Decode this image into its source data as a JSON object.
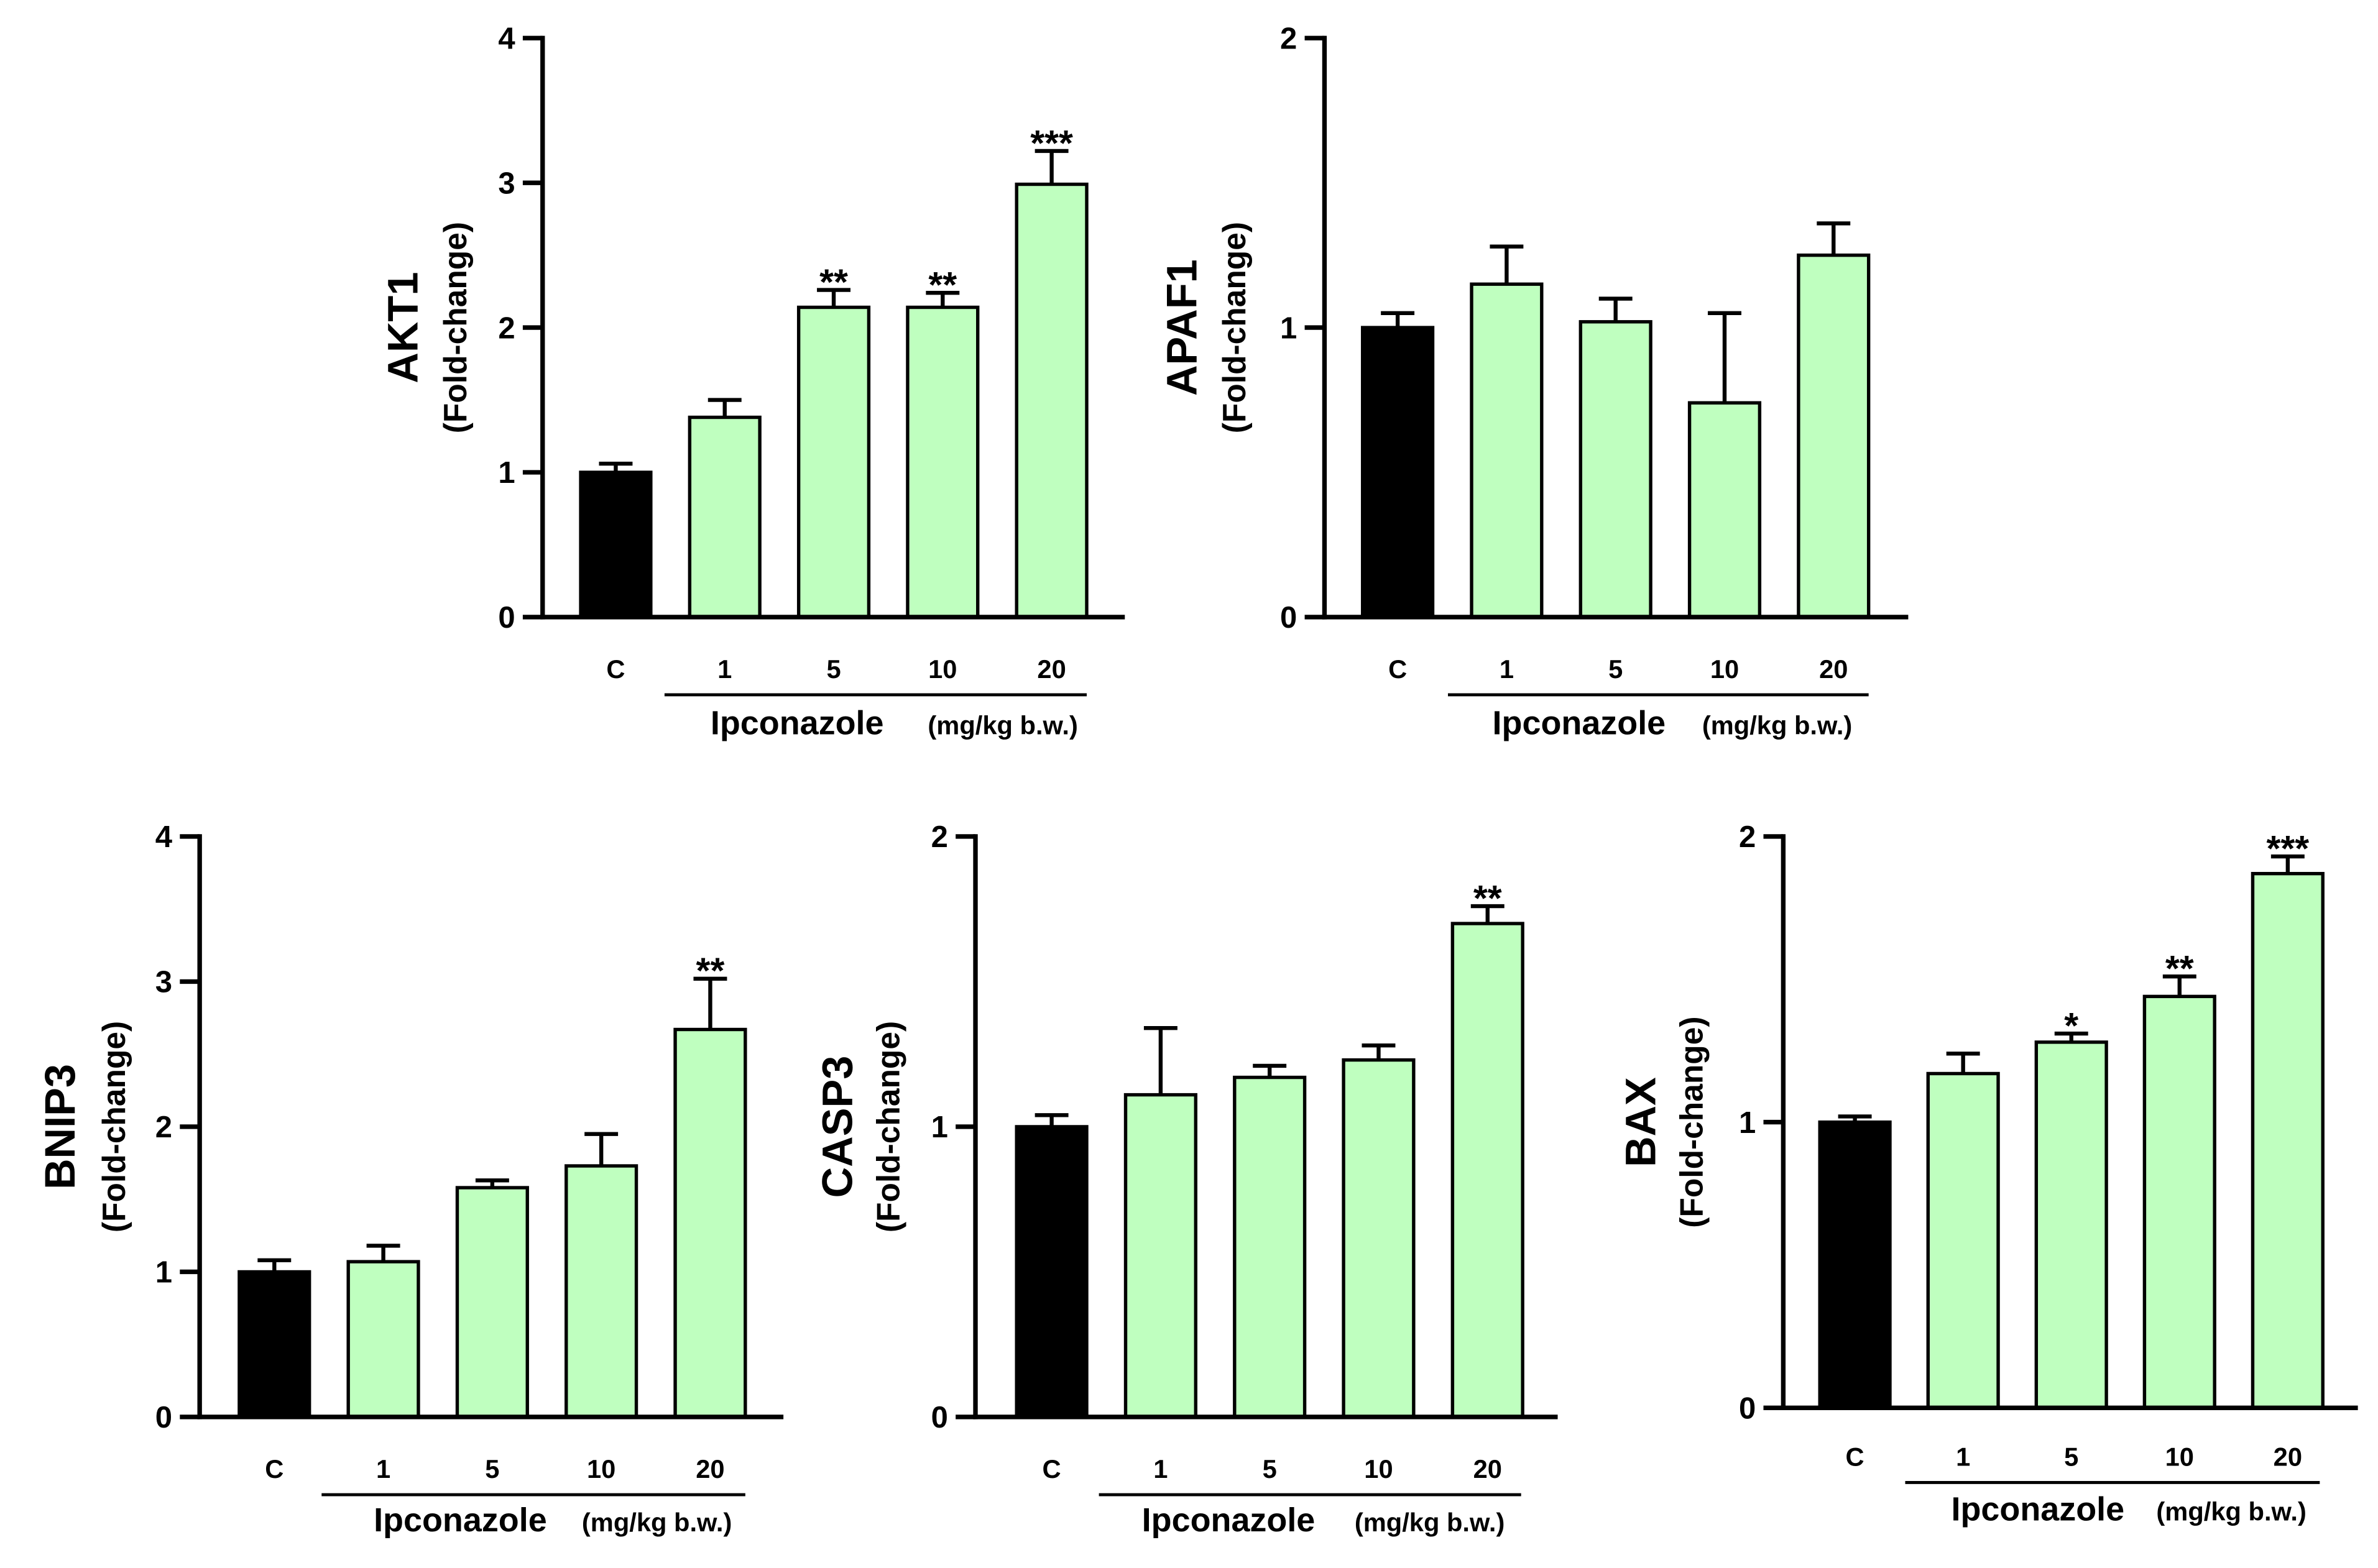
{
  "figure": {
    "xlabel_main": "Ipconazole",
    "xlabel_unit": "(mg/kg b.w.)",
    "ylabel_sub": "(Fold-change)",
    "colors": {
      "control": "#000000",
      "treated": "#bfffbf",
      "stroke": "#000000"
    }
  },
  "chart_data": [
    {
      "type": "bar",
      "title": "AKT1",
      "ylabel": "AKT1",
      "ylim": [
        0,
        4
      ],
      "yticks": [
        "0",
        "1",
        "2",
        "3",
        "4"
      ],
      "categories": [
        "C",
        "1",
        "5",
        "10",
        "20"
      ],
      "values": [
        1.0,
        1.38,
        2.14,
        2.14,
        2.99
      ],
      "errors": [
        0.06,
        0.12,
        0.12,
        0.1,
        0.23
      ],
      "significance": [
        "",
        "",
        "**",
        "**",
        "***"
      ]
    },
    {
      "type": "bar",
      "title": "APAF1",
      "ylabel": "APAF1",
      "ylim": [
        0,
        2
      ],
      "yticks": [
        "0",
        "1",
        "2"
      ],
      "categories": [
        "C",
        "1",
        "5",
        "10",
        "20"
      ],
      "values": [
        1.0,
        1.15,
        1.02,
        0.74,
        1.25
      ],
      "errors": [
        0.05,
        0.13,
        0.08,
        0.31,
        0.11
      ],
      "significance": [
        "",
        "",
        "",
        "",
        ""
      ]
    },
    {
      "type": "bar",
      "title": "BNIP3",
      "ylabel": "BNIP3",
      "ylim": [
        0,
        4
      ],
      "yticks": [
        "0",
        "1",
        "2",
        "3",
        "4"
      ],
      "categories": [
        "C",
        "1",
        "5",
        "10",
        "20"
      ],
      "values": [
        1.0,
        1.07,
        1.58,
        1.73,
        2.67
      ],
      "errors": [
        0.08,
        0.11,
        0.05,
        0.22,
        0.35
      ],
      "significance": [
        "",
        "",
        "",
        "",
        "**"
      ]
    },
    {
      "type": "bar",
      "title": "CASP3",
      "ylabel": "CASP3",
      "ylim": [
        0,
        2
      ],
      "yticks": [
        "0",
        "1",
        "2"
      ],
      "categories": [
        "C",
        "1",
        "5",
        "10",
        "20"
      ],
      "values": [
        1.0,
        1.11,
        1.17,
        1.23,
        1.7
      ],
      "errors": [
        0.04,
        0.23,
        0.04,
        0.05,
        0.06
      ],
      "significance": [
        "",
        "",
        "",
        "",
        "**"
      ]
    },
    {
      "type": "bar",
      "title": "BAX",
      "ylabel": "BAX",
      "ylim": [
        0,
        2
      ],
      "yticks": [
        "0",
        "1",
        "2"
      ],
      "categories": [
        "C",
        "1",
        "5",
        "10",
        "20"
      ],
      "values": [
        1.0,
        1.17,
        1.28,
        1.44,
        1.87
      ],
      "errors": [
        0.02,
        0.07,
        0.03,
        0.07,
        0.06
      ],
      "significance": [
        "",
        "",
        "*",
        "**",
        "***"
      ]
    }
  ]
}
